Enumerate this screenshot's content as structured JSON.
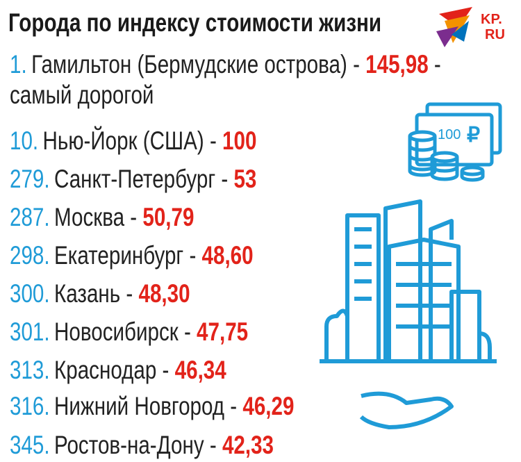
{
  "header": {
    "title": "Города по индексу стоимости жизни",
    "logo_top": "KP.",
    "logo_bottom": "RU"
  },
  "banknote": {
    "denomination": "100",
    "currency": "₽"
  },
  "items": [
    {
      "rank": "1.",
      "name": "Гамильтон (Бермудские острова) -",
      "value": "145,98",
      "suffix": "-",
      "note": "самый дорогой"
    },
    {
      "rank": "10.",
      "name": "Нью-Йорк (США) -",
      "value": "100"
    },
    {
      "rank": "279.",
      "name": "Санкт-Петербург -",
      "value": "53"
    },
    {
      "rank": "287.",
      "name": "Москва -",
      "value": "50,79"
    },
    {
      "rank": "298.",
      "name": "Екатеринбург -",
      "value": "48,60"
    },
    {
      "rank": "300.",
      "name": "Казань -",
      "value": "48,30"
    },
    {
      "rank": "301.",
      "name": "Новосибирск -",
      "value": "47,75"
    },
    {
      "rank": "313.",
      "name": "Краснодар -",
      "value": "46,34"
    },
    {
      "rank": "316.",
      "name": "Нижний Новгород -",
      "value": "46,29"
    },
    {
      "rank": "345.",
      "name": "Ростов-на-Дону -",
      "value": "42,33"
    }
  ]
}
